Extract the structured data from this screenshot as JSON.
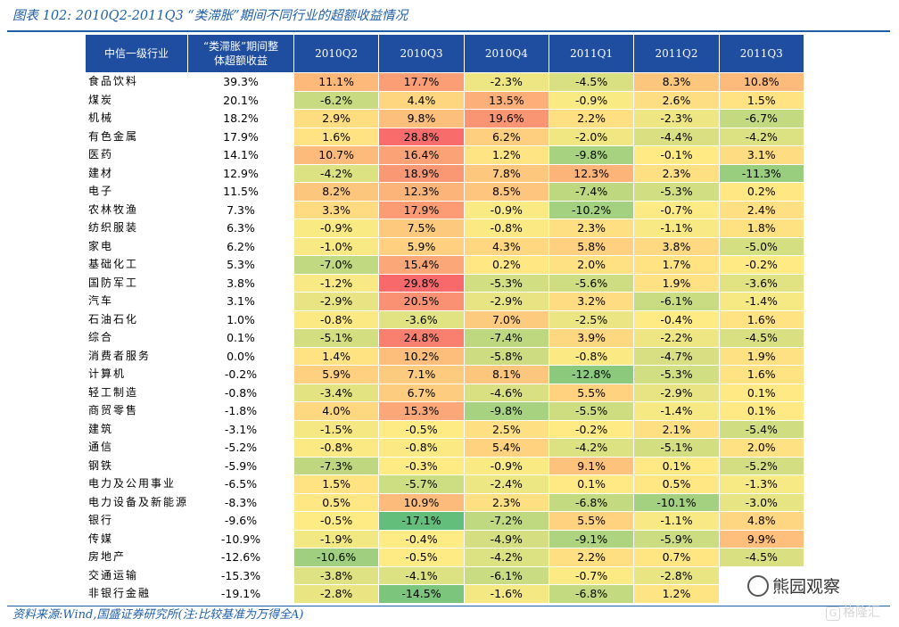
{
  "title": "图表 102:  2010Q2-2011Q3 “类滞胀”期间不同行业的超额收益情况",
  "table": {
    "header_industry": "中信一级行业",
    "header_total_line1": "“类滞胀”期间整",
    "header_total_line2": "体超额收益",
    "quarters": [
      "2010Q2",
      "2010Q3",
      "2010Q4",
      "2011Q1",
      "2011Q2",
      "2011Q3"
    ],
    "rows": [
      {
        "industry": "食品饮料",
        "total": "39.3%",
        "values": [
          "11.1%",
          "17.7%",
          "-2.3%",
          "-4.5%",
          "8.3%",
          "10.8%"
        ]
      },
      {
        "industry": "煤炭",
        "total": "20.1%",
        "values": [
          "-6.2%",
          "4.4%",
          "13.5%",
          "-0.9%",
          "2.6%",
          "1.5%"
        ]
      },
      {
        "industry": "机械",
        "total": "18.2%",
        "values": [
          "2.9%",
          "9.8%",
          "19.6%",
          "2.2%",
          "-2.3%",
          "-6.7%"
        ]
      },
      {
        "industry": "有色金属",
        "total": "17.9%",
        "values": [
          "1.6%",
          "28.8%",
          "6.2%",
          "-2.0%",
          "-4.4%",
          "-4.2%"
        ]
      },
      {
        "industry": "医药",
        "total": "14.1%",
        "values": [
          "10.7%",
          "16.4%",
          "1.2%",
          "-9.8%",
          "-0.1%",
          "3.1%"
        ]
      },
      {
        "industry": "建材",
        "total": "12.9%",
        "values": [
          "-4.2%",
          "18.9%",
          "7.8%",
          "12.3%",
          "2.3%",
          "-11.3%"
        ]
      },
      {
        "industry": "电子",
        "total": "11.5%",
        "values": [
          "8.2%",
          "12.3%",
          "8.5%",
          "-7.4%",
          "-5.3%",
          "0.2%"
        ]
      },
      {
        "industry": "农林牧渔",
        "total": "7.3%",
        "values": [
          "3.3%",
          "17.9%",
          "-0.9%",
          "-10.2%",
          "-0.7%",
          "2.4%"
        ]
      },
      {
        "industry": "纺织服装",
        "total": "6.3%",
        "values": [
          "-0.9%",
          "7.5%",
          "-0.8%",
          "2.3%",
          "-1.1%",
          "1.8%"
        ]
      },
      {
        "industry": "家电",
        "total": "6.2%",
        "values": [
          "-1.0%",
          "5.9%",
          "4.3%",
          "5.8%",
          "3.8%",
          "-5.0%"
        ]
      },
      {
        "industry": "基础化工",
        "total": "5.3%",
        "values": [
          "-7.0%",
          "15.4%",
          "0.2%",
          "2.0%",
          "1.7%",
          "-0.2%"
        ]
      },
      {
        "industry": "国防军工",
        "total": "3.8%",
        "values": [
          "-1.2%",
          "29.8%",
          "-5.3%",
          "-5.6%",
          "1.9%",
          "-3.6%"
        ]
      },
      {
        "industry": "汽车",
        "total": "3.1%",
        "values": [
          "-2.9%",
          "20.5%",
          "-2.9%",
          "3.2%",
          "-6.1%",
          "-1.4%"
        ]
      },
      {
        "industry": "石油石化",
        "total": "1.0%",
        "values": [
          "-0.8%",
          "-3.6%",
          "7.0%",
          "-2.5%",
          "-0.4%",
          "1.6%"
        ]
      },
      {
        "industry": "综合",
        "total": "0.1%",
        "values": [
          "-5.1%",
          "24.8%",
          "-7.4%",
          "3.9%",
          "-2.2%",
          "-4.5%"
        ]
      },
      {
        "industry": "消费者服务",
        "total": "0.0%",
        "values": [
          "1.4%",
          "10.2%",
          "-5.8%",
          "-0.8%",
          "-4.7%",
          "1.9%"
        ]
      },
      {
        "industry": "计算机",
        "total": "-0.2%",
        "values": [
          "5.9%",
          "7.1%",
          "8.1%",
          "-12.8%",
          "-5.3%",
          "1.6%"
        ]
      },
      {
        "industry": "轻工制造",
        "total": "-0.8%",
        "values": [
          "-3.4%",
          "6.7%",
          "-4.6%",
          "5.5%",
          "-2.9%",
          "0.1%"
        ]
      },
      {
        "industry": "商贸零售",
        "total": "-1.8%",
        "values": [
          "4.0%",
          "15.3%",
          "-9.8%",
          "-5.5%",
          "-1.4%",
          "0.1%"
        ]
      },
      {
        "industry": "建筑",
        "total": "-3.1%",
        "values": [
          "-1.5%",
          "-0.5%",
          "2.5%",
          "-0.2%",
          "2.1%",
          "-5.4%"
        ]
      },
      {
        "industry": "通信",
        "total": "-5.2%",
        "values": [
          "-0.8%",
          "-0.8%",
          "5.4%",
          "-4.2%",
          "-5.1%",
          "2.0%"
        ]
      },
      {
        "industry": "钢铁",
        "total": "-5.9%",
        "values": [
          "-7.3%",
          "-0.3%",
          "-0.9%",
          "9.1%",
          "0.1%",
          "-5.2%"
        ]
      },
      {
        "industry": "电力及公用事业",
        "total": "-6.5%",
        "values": [
          "1.5%",
          "-5.7%",
          "-2.4%",
          "0.1%",
          "0.5%",
          "-1.3%"
        ]
      },
      {
        "industry": "电力设备及新能源",
        "total": "-8.3%",
        "values": [
          "0.5%",
          "10.9%",
          "2.3%",
          "-6.8%",
          "-10.1%",
          "-3.0%"
        ]
      },
      {
        "industry": "银行",
        "total": "-9.6%",
        "values": [
          "-0.5%",
          "-17.1%",
          "-7.2%",
          "5.5%",
          "-1.1%",
          "4.8%"
        ]
      },
      {
        "industry": "传媒",
        "total": "-10.9%",
        "values": [
          "-1.9%",
          "-0.4%",
          "-4.9%",
          "-9.1%",
          "-5.9%",
          "9.9%"
        ]
      },
      {
        "industry": "房地产",
        "total": "-12.6%",
        "values": [
          "-10.6%",
          "-0.5%",
          "-4.2%",
          "2.2%",
          "0.7%",
          "-4.5%"
        ]
      },
      {
        "industry": "交通运输",
        "total": "-15.3%",
        "values": [
          "-3.8%",
          "-4.1%",
          "-6.1%",
          "-0.7%",
          "-2.8%",
          ""
        ]
      },
      {
        "industry": "非银行金融",
        "total": "-19.1%",
        "values": [
          "-2.8%",
          "-14.5%",
          "-1.6%",
          "-6.8%",
          "1.2%",
          ""
        ]
      }
    ]
  },
  "source": "资料来源:Wind,国盛证券研究所(注:比较基准为万得全A)",
  "watermark_1": "熊园观察",
  "watermark_2": "格隆汇",
  "colors": {
    "header_bg": "#1f4ea0",
    "title_blue": "#1f5fa8",
    "scale_min": "#63be7b",
    "scale_mid": "#ffeb84",
    "scale_max": "#f8696b"
  }
}
